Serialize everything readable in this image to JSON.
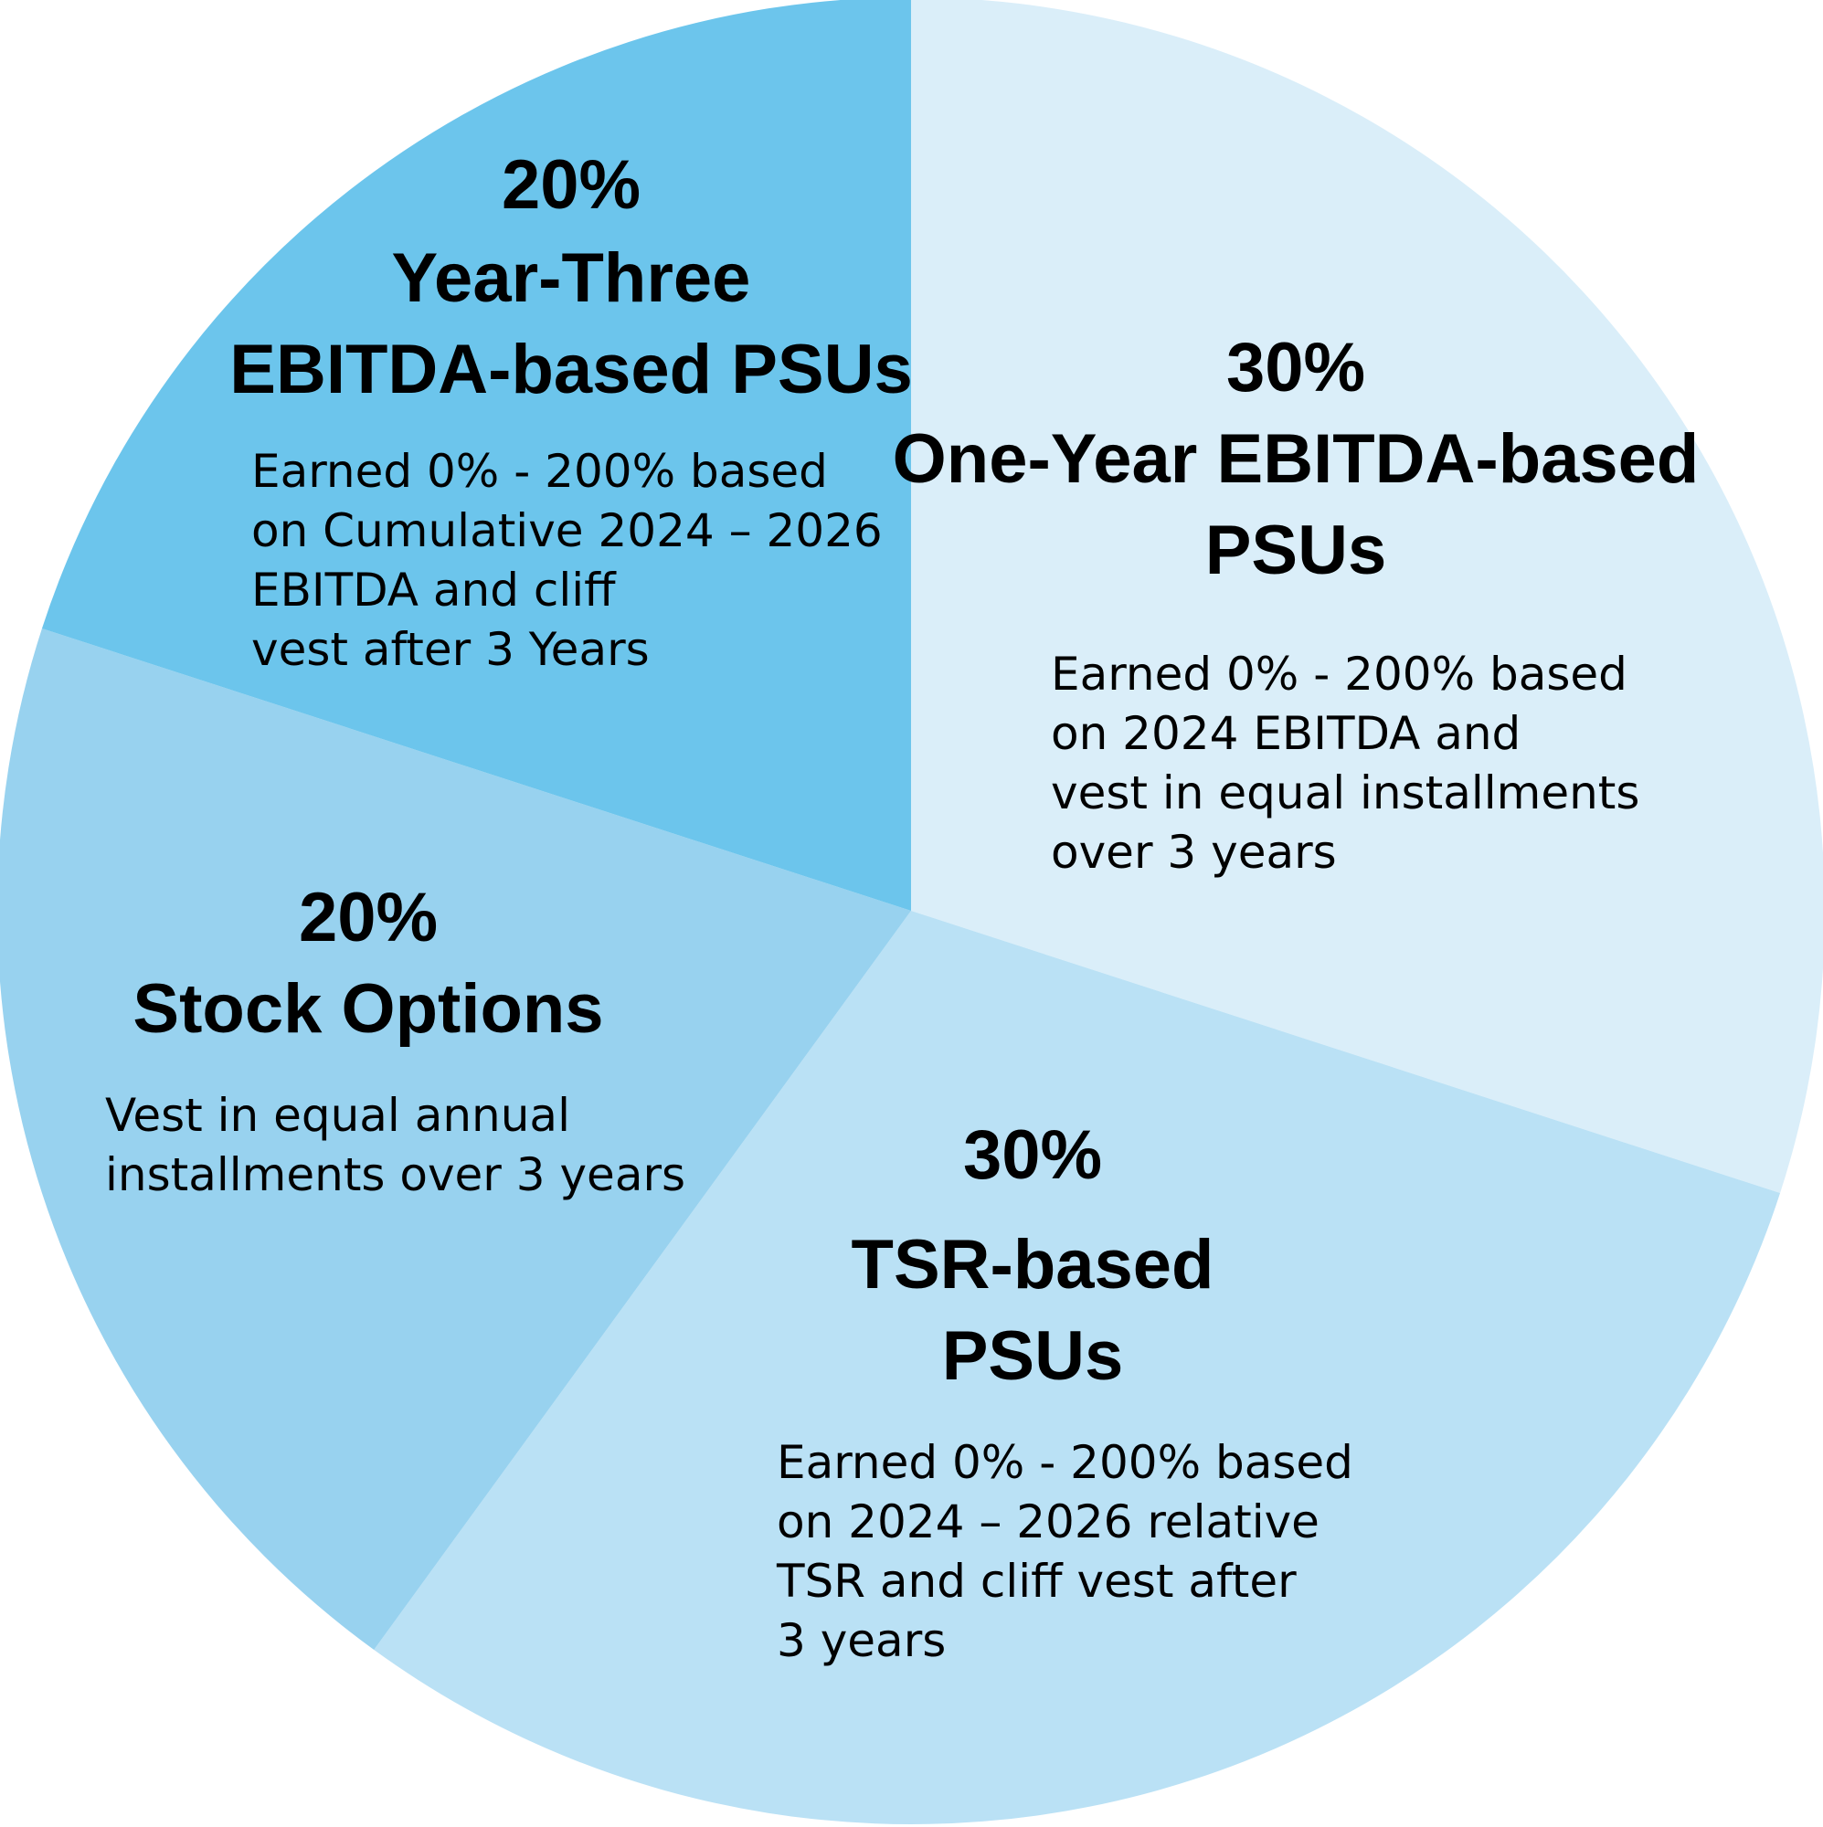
{
  "chart_data": {
    "type": "pie",
    "title": "",
    "slices": [
      {
        "value": 30,
        "percent_label": "30%",
        "name_lines": [
          "One-Year EBITDA-based",
          "PSUs"
        ],
        "desc_lines": [
          "Earned 0% - 200% based",
          "on 2024 EBITDA and",
          "vest in equal installments",
          "over 3 years"
        ],
        "color": "#DAEEF9"
      },
      {
        "value": 30,
        "percent_label": "30%",
        "name_lines": [
          "TSR-based",
          "PSUs"
        ],
        "desc_lines": [
          "Earned 0% - 200% based",
          "on 2024 – 2026 relative",
          "TSR and cliff vest after",
          "3 years"
        ],
        "color": "#BAE1F5"
      },
      {
        "value": 20,
        "percent_label": "20%",
        "name_lines": [
          "Stock Options"
        ],
        "desc_lines": [
          "Vest in equal annual",
          "installments over 3 years"
        ],
        "color": "#98D2EF"
      },
      {
        "value": 20,
        "percent_label": "20%",
        "name_lines": [
          "Year-Three",
          "EBITDA-based PSUs"
        ],
        "desc_lines": [
          "Earned 0% - 200% based",
          "on Cumulative 2024 – 2026",
          "EBITDA and cliff",
          "vest after 3 Years"
        ],
        "color": "#6CC5EC"
      }
    ],
    "start_angle_deg": 0,
    "direction": "clockwise",
    "legend": "none"
  }
}
